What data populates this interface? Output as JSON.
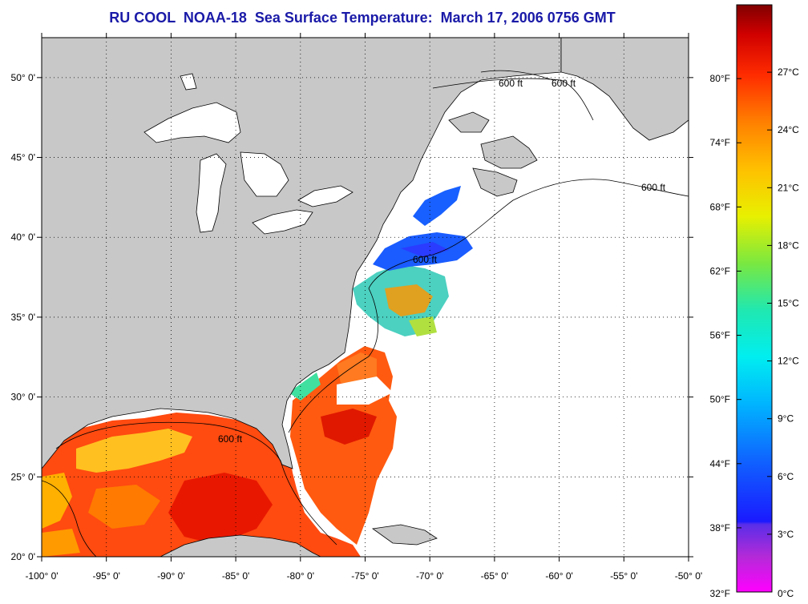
{
  "title": "RU COOL  NOAA-18  Sea Surface Temperature:  March 17, 2006 0756 GMT",
  "map": {
    "lon_range": [
      -100,
      -50
    ],
    "lat_range": [
      20,
      52.5
    ],
    "lon_ticks": [
      "-100° 0'",
      "-95° 0'",
      "-90° 0'",
      "-85° 0'",
      "-80° 0'",
      "-75° 0'",
      "-70° 0'",
      "-65° 0'",
      "-60° 0'",
      "-55° 0'",
      "-50° 0'"
    ],
    "lat_ticks": [
      "20° 0'",
      "25° 0'",
      "30° 0'",
      "35° 0'",
      "40° 0'",
      "45° 0'",
      "50° 0'"
    ],
    "contour_label": "600 ft",
    "grid": "dotted",
    "land_color": "#c8c8c8",
    "no_data_color": "#ffffff",
    "coast_color": "#000000"
  },
  "colorbar": {
    "orientation": "vertical",
    "placement": "right",
    "f_labels": [
      "32°F",
      "38°F",
      "44°F",
      "50°F",
      "56°F",
      "62°F",
      "68°F",
      "74°F",
      "80°F"
    ],
    "c_labels": [
      "0°C",
      "3°C",
      "6°C",
      "9°C",
      "12°C",
      "15°C",
      "18°C",
      "21°C",
      "24°C",
      "27°C"
    ],
    "colors": [
      "#ff00ff",
      "#9a2ed4",
      "#1f1fff",
      "#0a6dff",
      "#00c8ff",
      "#00f0e0",
      "#2fe08a",
      "#a8e830",
      "#ffff00",
      "#ffbe00",
      "#ff7a00",
      "#ff2a00",
      "#d20000",
      "#8a0000"
    ]
  }
}
